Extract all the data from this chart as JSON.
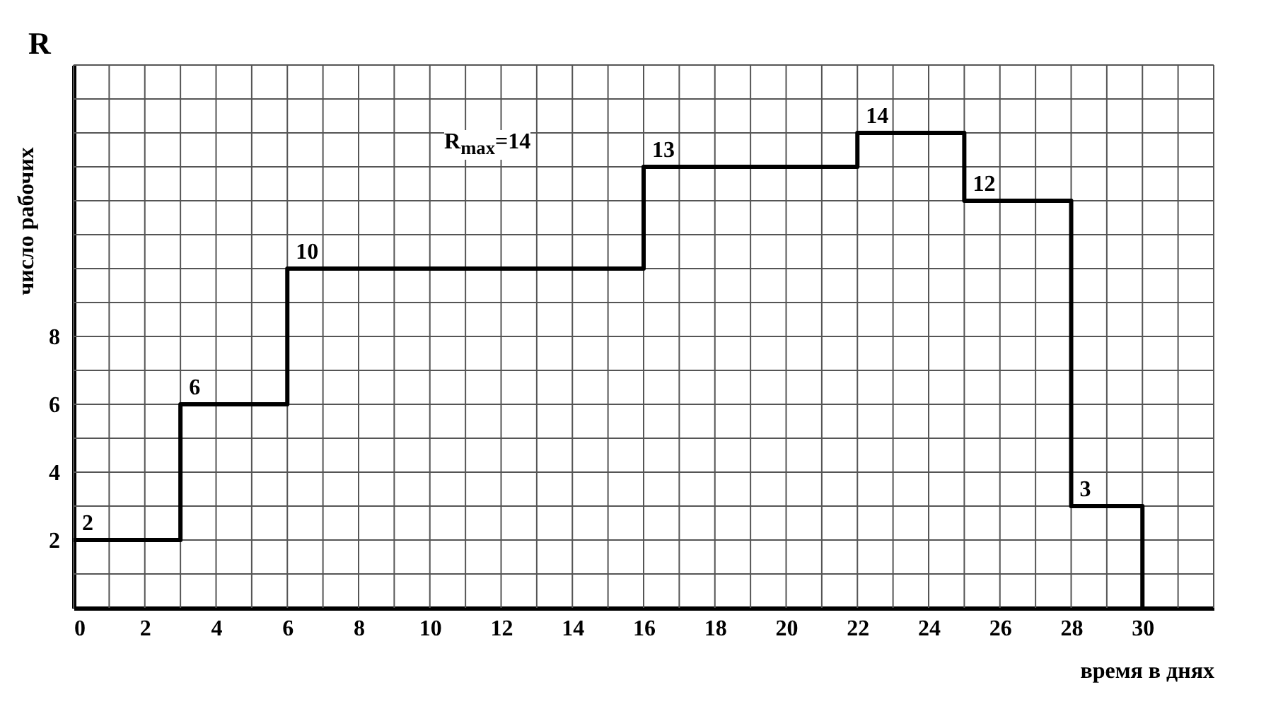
{
  "chart_data": {
    "type": "step",
    "xlabel": "время в днях",
    "ylabel": "число рабочих",
    "annotations": [
      "R",
      "R$_{max}$=14"
    ],
    "x": [
      0,
      3,
      6,
      16,
      22,
      25,
      28,
      30
    ],
    "series": [
      {
        "color": "#000000",
        "values": [
          2,
          6,
          10,
          13,
          14,
          12,
          3,
          0
        ],
        "value_labels": [
          "2",
          "6",
          "10",
          "13",
          "14",
          "12",
          "3",
          null
        ]
      }
    ],
    "xlim": [
      0,
      32
    ],
    "ylim": [
      0,
      16
    ],
    "xticks": [
      0,
      {
        "value": 1,
        "label": null
      },
      2,
      {
        "value": 3,
        "label": null
      },
      4,
      {
        "value": 5,
        "label": null
      },
      6,
      {
        "value": 7,
        "label": null
      },
      8,
      {
        "value": 9,
        "label": null
      },
      10,
      {
        "value": 11,
        "label": null
      },
      12,
      {
        "value": 13,
        "label": null
      },
      14,
      {
        "value": 15,
        "label": null
      },
      16,
      {
        "value": 17,
        "label": null
      },
      18,
      {
        "value": 19,
        "label": null
      },
      20,
      {
        "value": 21,
        "label": null
      },
      22,
      {
        "value": 23,
        "label": null
      },
      24,
      {
        "value": 25,
        "label": null
      },
      26,
      {
        "value": 27,
        "label": null
      },
      28,
      {
        "value": 29,
        "label": null
      },
      30,
      {
        "value": 31,
        "label": null
      },
      {
        "value": 32,
        "label": null
      }
    ],
    "yticks": [
      {
        "value": 1,
        "label": null
      },
      2,
      {
        "value": 3,
        "label": null
      },
      4,
      {
        "value": 5,
        "label": null
      },
      6,
      {
        "value": 7,
        "label": null
      },
      8,
      {
        "value": 9,
        "label": null
      },
      {
        "value": 10,
        "label": null
      },
      {
        "value": 11,
        "label": null
      },
      {
        "value": 12,
        "label": null
      },
      {
        "value": 13,
        "label": null
      },
      {
        "value": 14,
        "label": null
      },
      {
        "value": 15,
        "label": null
      },
      {
        "value": 16,
        "label": null
      }
    ],
    "grid": true,
    "marker": "none",
    "line_style": "solid"
  }
}
